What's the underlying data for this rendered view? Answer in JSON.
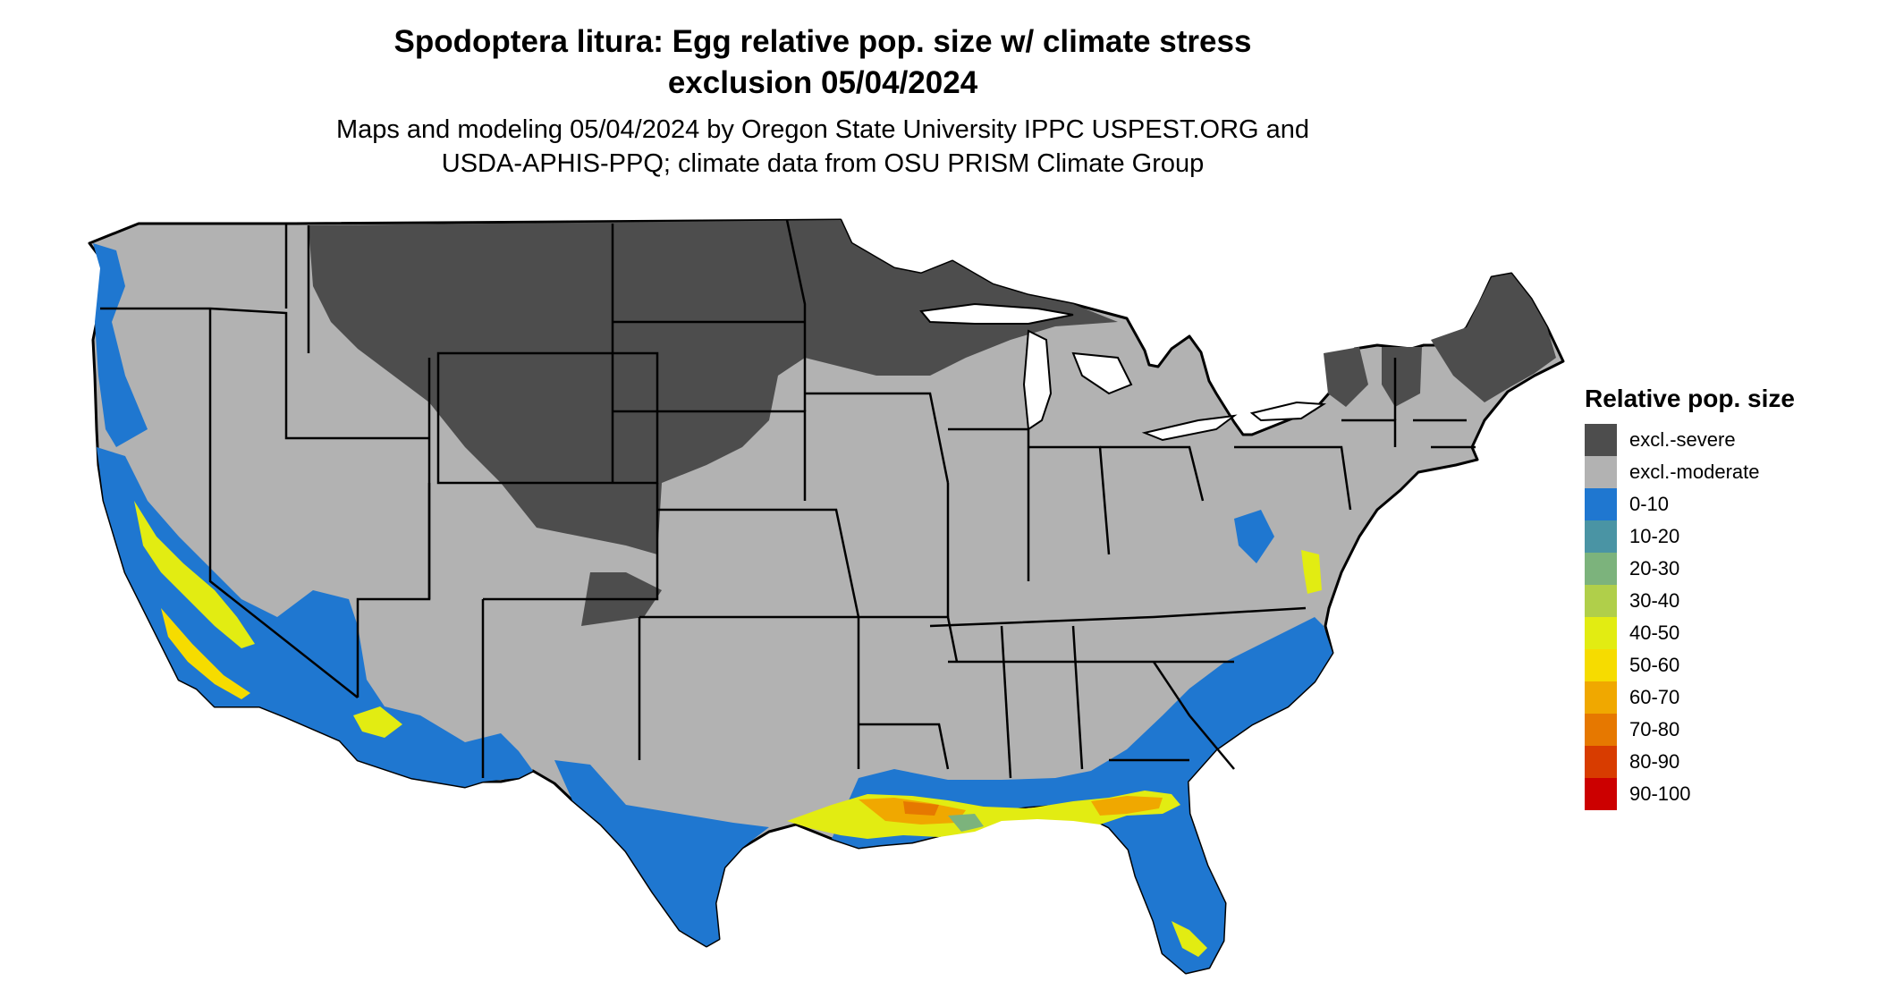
{
  "title_line1": "Spodoptera litura: Egg relative pop. size w/ climate stress",
  "title_line2": "exclusion 05/04/2024",
  "subtitle_line1": "Maps and modeling 05/04/2024 by Oregon State University IPPC USPEST.ORG and",
  "subtitle_line2": "USDA-APHIS-PPQ; climate data from OSU PRISM Climate Group",
  "legend": {
    "title": "Relative pop. size",
    "items": [
      {
        "label": "excl.-severe",
        "color": "#4d4d4d"
      },
      {
        "label": "excl.-moderate",
        "color": "#b2b2b2"
      },
      {
        "label": "0-10",
        "color": "#1f77d0"
      },
      {
        "label": "10-20",
        "color": "#4a94a4"
      },
      {
        "label": "20-30",
        "color": "#7cb37c"
      },
      {
        "label": "30-40",
        "color": "#b0cf4a"
      },
      {
        "label": "40-50",
        "color": "#e2ec12"
      },
      {
        "label": "50-60",
        "color": "#f6dc00"
      },
      {
        "label": "60-70",
        "color": "#f0a800"
      },
      {
        "label": "70-80",
        "color": "#e67800"
      },
      {
        "label": "80-90",
        "color": "#d83c00"
      },
      {
        "label": "90-100",
        "color": "#cc0000"
      }
    ]
  }
}
